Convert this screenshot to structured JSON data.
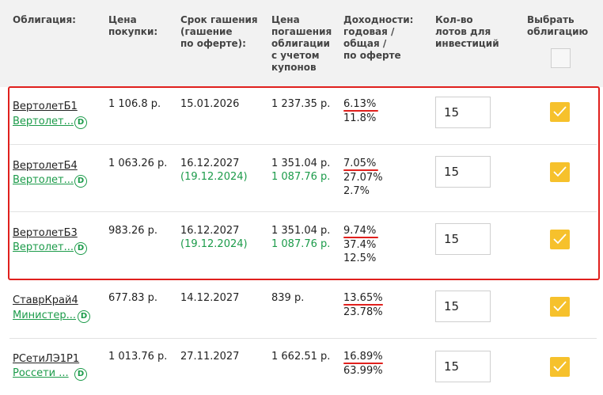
{
  "header": {
    "bond": "Облигация:",
    "price": "Цена\nпокупки:",
    "maturity": "Срок гашения\n(гашение\nпо оферте):",
    "redemption": "Цена\nпогашения\nоблигации\nс учетом\nкупонов",
    "yield": "Доходности:\nгодовая /\nобщая /\nпо оферте",
    "lots": "Кол-во\nлотов для\nинвестиций",
    "select": "Выбрать\nоблигацию"
  },
  "rows": [
    {
      "name": "ВертолетБ1",
      "issuer": "Вертолет...",
      "price": "1 106.8 р.",
      "maturity": "15.01.2026",
      "offer_date": "",
      "redemption": "1 237.35 р.",
      "redemption_offer": "",
      "yield_annual": "6.13%",
      "yield_total": "11.8%",
      "yield_offer": "",
      "lots": "15",
      "selected": true
    },
    {
      "name": "ВертолетБ4",
      "issuer": "Вертолет...",
      "price": "1 063.26 р.",
      "maturity": "16.12.2027",
      "offer_date": "(19.12.2024)",
      "redemption": "1 351.04 р.",
      "redemption_offer": "1 087.76 р.",
      "yield_annual": "7.05%",
      "yield_total": "27.07%",
      "yield_offer": "2.7%",
      "lots": "15",
      "selected": true
    },
    {
      "name": "ВертолетБ3",
      "issuer": "Вертолет...",
      "price": "983.26 р.",
      "maturity": "16.12.2027",
      "offer_date": "(19.12.2024)",
      "redemption": "1 351.04 р.",
      "redemption_offer": "1 087.76 р.",
      "yield_annual": "9.74%",
      "yield_total": "37.4%",
      "yield_offer": "12.5%",
      "lots": "15",
      "selected": true
    },
    {
      "name": "СтаврКрай4",
      "issuer": "Министер...",
      "price": "677.83 р.",
      "maturity": "14.12.2027",
      "offer_date": "",
      "redemption": "839 р.",
      "redemption_offer": "",
      "yield_annual": "13.65%",
      "yield_total": "23.78%",
      "yield_offer": "",
      "lots": "15",
      "selected": true
    },
    {
      "name": "РСетиЛЭ1Р1",
      "issuer": "Россети ...",
      "price": "1 013.76 р.",
      "maturity": "27.11.2027",
      "offer_date": "",
      "redemption": "1 662.51 р.",
      "redemption_offer": "",
      "yield_annual": "16.89%",
      "yield_total": "63.99%",
      "yield_offer": "",
      "lots": "15",
      "selected": true
    }
  ],
  "icons": {
    "dividend": "D",
    "check": "checkmark-icon"
  },
  "colors": {
    "accent_green": "#1c9b4a",
    "highlight_red": "#e0201d",
    "checkbox_yellow": "#f6c12c"
  }
}
